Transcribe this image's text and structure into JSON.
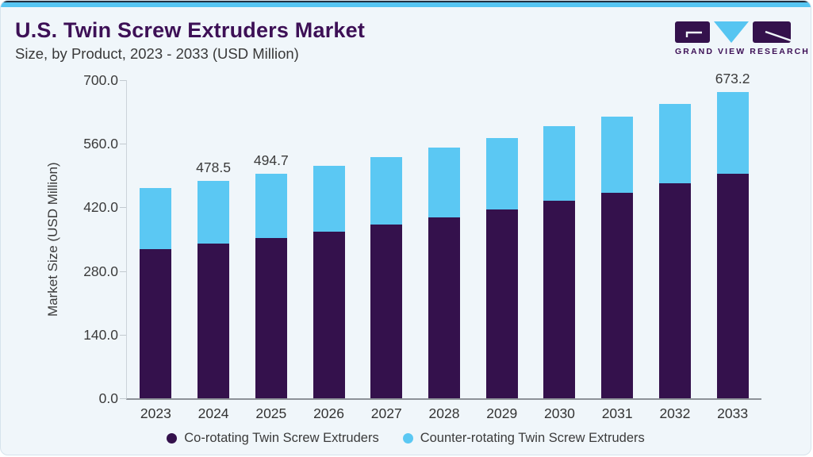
{
  "header": {
    "title": "U.S. Twin Screw Extruders Market",
    "subtitle": "Size, by Product, 2023 - 2033 (USD Million)",
    "logo_text": "GRAND VIEW RESEARCH"
  },
  "colors": {
    "accent_bar": "#56c5f1",
    "title_purple": "#3d1056",
    "bar_purple": "#34114c",
    "bar_blue": "#5bc8f3",
    "card_background": "#f0f6fa",
    "axis_text": "#3b3b3b"
  },
  "chart_data": {
    "type": "bar",
    "stacked": true,
    "title": "U.S. Twin Screw Extruders Market",
    "subtitle": "Size, by Product, 2023 - 2033 (USD Million)",
    "xlabel": "",
    "ylabel": "Market Size (USD Million)",
    "ylim": [
      0,
      700
    ],
    "yticks": [
      0,
      140,
      280,
      420,
      560,
      700
    ],
    "ytick_labels": [
      "0.0",
      "140.0",
      "280.0",
      "420.0",
      "560.0",
      "700.0"
    ],
    "grid": false,
    "legend_position": "bottom",
    "categories": [
      "2023",
      "2024",
      "2025",
      "2026",
      "2027",
      "2028",
      "2029",
      "2030",
      "2031",
      "2032",
      "2033"
    ],
    "series": [
      {
        "name": "Co-rotating Twin Screw Extruders",
        "color": "#34114c",
        "values": [
          327.6,
          339.6,
          353.2,
          366.4,
          381.8,
          397.4,
          415.3,
          435.0,
          451.6,
          472.6,
          494.6
        ]
      },
      {
        "name": "Counter-rotating Twin Screw Extruders",
        "color": "#5bc8f3",
        "values": [
          134.8,
          138.9,
          141.5,
          145.6,
          149.3,
          153.9,
          158.0,
          164.1,
          169.0,
          174.8,
          178.6
        ]
      }
    ],
    "totals": [
      462.4,
      478.5,
      494.7,
      512.0,
      531.1,
      551.3,
      573.3,
      599.1,
      620.6,
      647.4,
      673.2
    ],
    "total_labels_visible": [
      "",
      "478.5",
      "494.7",
      "",
      "",
      "",
      "",
      "",
      "",
      "",
      "673.2"
    ]
  }
}
